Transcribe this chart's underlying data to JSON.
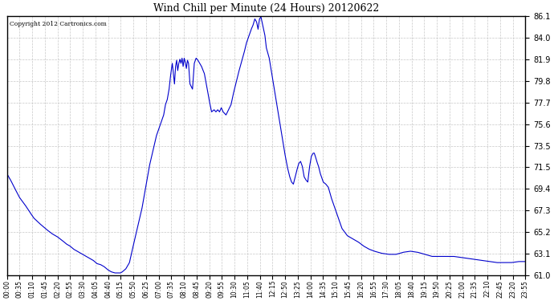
{
  "title": "Wind Chill per Minute (24 Hours) 20120622",
  "copyright": "Copyright 2012 Cartronics.com",
  "line_color": "#0000cc",
  "background_color": "#ffffff",
  "grid_color": "#c8c8c8",
  "ylim": [
    61.0,
    86.1
  ],
  "yticks": [
    61.0,
    63.1,
    65.2,
    67.3,
    69.4,
    71.5,
    73.5,
    75.6,
    77.7,
    79.8,
    81.9,
    84.0,
    86.1
  ],
  "xtick_labels": [
    "00:00",
    "00:35",
    "01:10",
    "01:45",
    "02:20",
    "02:55",
    "03:30",
    "04:05",
    "04:40",
    "05:15",
    "05:50",
    "06:25",
    "07:00",
    "07:35",
    "08:10",
    "08:45",
    "09:20",
    "09:55",
    "10:30",
    "11:05",
    "11:40",
    "12:15",
    "12:50",
    "13:25",
    "14:00",
    "14:35",
    "15:10",
    "15:45",
    "16:20",
    "16:55",
    "17:30",
    "18:05",
    "18:40",
    "19:15",
    "19:50",
    "20:25",
    "21:00",
    "21:35",
    "22:10",
    "22:45",
    "23:20",
    "23:55"
  ],
  "data_keypoints": [
    [
      0,
      70.8
    ],
    [
      10,
      70.2
    ],
    [
      20,
      69.5
    ],
    [
      35,
      68.5
    ],
    [
      50,
      67.8
    ],
    [
      65,
      67.0
    ],
    [
      75,
      66.5
    ],
    [
      90,
      66.0
    ],
    [
      110,
      65.4
    ],
    [
      125,
      65.0
    ],
    [
      140,
      64.7
    ],
    [
      155,
      64.3
    ],
    [
      165,
      64.0
    ],
    [
      175,
      63.8
    ],
    [
      185,
      63.5
    ],
    [
      200,
      63.2
    ],
    [
      210,
      63.0
    ],
    [
      220,
      62.8
    ],
    [
      230,
      62.6
    ],
    [
      240,
      62.4
    ],
    [
      250,
      62.1
    ],
    [
      260,
      62.0
    ],
    [
      270,
      61.8
    ],
    [
      280,
      61.5
    ],
    [
      290,
      61.3
    ],
    [
      300,
      61.2
    ],
    [
      310,
      61.2
    ],
    [
      315,
      61.2
    ],
    [
      320,
      61.3
    ],
    [
      330,
      61.6
    ],
    [
      340,
      62.2
    ],
    [
      345,
      63.0
    ],
    [
      355,
      64.5
    ],
    [
      365,
      66.0
    ],
    [
      375,
      67.5
    ],
    [
      385,
      69.5
    ],
    [
      395,
      71.5
    ],
    [
      405,
      73.0
    ],
    [
      415,
      74.5
    ],
    [
      425,
      75.5
    ],
    [
      430,
      76.0
    ],
    [
      435,
      76.5
    ],
    [
      440,
      77.5
    ],
    [
      445,
      78.0
    ],
    [
      450,
      79.0
    ],
    [
      453,
      80.0
    ],
    [
      456,
      80.8
    ],
    [
      459,
      81.5
    ],
    [
      462,
      80.5
    ],
    [
      465,
      79.5
    ],
    [
      468,
      81.2
    ],
    [
      471,
      81.8
    ],
    [
      474,
      80.8
    ],
    [
      477,
      81.5
    ],
    [
      480,
      81.9
    ],
    [
      483,
      81.5
    ],
    [
      486,
      82.0
    ],
    [
      489,
      81.2
    ],
    [
      492,
      82.0
    ],
    [
      495,
      81.6
    ],
    [
      498,
      81.0
    ],
    [
      501,
      81.8
    ],
    [
      504,
      81.5
    ],
    [
      508,
      79.5
    ],
    [
      515,
      79.0
    ],
    [
      520,
      81.5
    ],
    [
      525,
      82.0
    ],
    [
      530,
      81.8
    ],
    [
      535,
      81.5
    ],
    [
      540,
      81.2
    ],
    [
      548,
      80.5
    ],
    [
      555,
      79.2
    ],
    [
      562,
      77.8
    ],
    [
      568,
      76.8
    ],
    [
      575,
      77.0
    ],
    [
      580,
      76.8
    ],
    [
      585,
      77.0
    ],
    [
      590,
      76.8
    ],
    [
      595,
      77.2
    ],
    [
      600,
      76.8
    ],
    [
      608,
      76.5
    ],
    [
      615,
      77.0
    ],
    [
      622,
      77.5
    ],
    [
      628,
      78.5
    ],
    [
      635,
      79.5
    ],
    [
      642,
      80.5
    ],
    [
      650,
      81.5
    ],
    [
      658,
      82.5
    ],
    [
      665,
      83.5
    ],
    [
      672,
      84.2
    ],
    [
      678,
      84.8
    ],
    [
      683,
      85.2
    ],
    [
      688,
      85.8
    ],
    [
      693,
      85.5
    ],
    [
      697,
      84.8
    ],
    [
      701,
      85.8
    ],
    [
      705,
      86.0
    ],
    [
      708,
      85.5
    ],
    [
      712,
      84.8
    ],
    [
      716,
      84.2
    ],
    [
      720,
      83.0
    ],
    [
      728,
      82.0
    ],
    [
      735,
      80.5
    ],
    [
      742,
      79.0
    ],
    [
      749,
      77.5
    ],
    [
      756,
      76.0
    ],
    [
      763,
      74.5
    ],
    [
      770,
      73.0
    ],
    [
      778,
      71.5
    ],
    [
      785,
      70.5
    ],
    [
      790,
      70.0
    ],
    [
      795,
      69.8
    ],
    [
      800,
      70.5
    ],
    [
      805,
      71.2
    ],
    [
      810,
      71.8
    ],
    [
      815,
      72.0
    ],
    [
      820,
      71.5
    ],
    [
      825,
      70.5
    ],
    [
      830,
      70.2
    ],
    [
      835,
      70.0
    ],
    [
      840,
      71.5
    ],
    [
      845,
      72.5
    ],
    [
      850,
      72.8
    ],
    [
      853,
      72.8
    ],
    [
      856,
      72.5
    ],
    [
      860,
      72.0
    ],
    [
      865,
      71.5
    ],
    [
      870,
      70.8
    ],
    [
      878,
      70.0
    ],
    [
      885,
      69.8
    ],
    [
      892,
      69.5
    ],
    [
      900,
      68.5
    ],
    [
      910,
      67.5
    ],
    [
      920,
      66.5
    ],
    [
      930,
      65.5
    ],
    [
      945,
      64.8
    ],
    [
      960,
      64.5
    ],
    [
      975,
      64.2
    ],
    [
      990,
      63.8
    ],
    [
      1005,
      63.5
    ],
    [
      1020,
      63.3
    ],
    [
      1040,
      63.1
    ],
    [
      1060,
      63.0
    ],
    [
      1080,
      63.0
    ],
    [
      1100,
      63.2
    ],
    [
      1120,
      63.3
    ],
    [
      1140,
      63.2
    ],
    [
      1160,
      63.0
    ],
    [
      1180,
      62.8
    ],
    [
      1200,
      62.8
    ],
    [
      1220,
      62.8
    ],
    [
      1240,
      62.8
    ],
    [
      1260,
      62.7
    ],
    [
      1280,
      62.6
    ],
    [
      1300,
      62.5
    ],
    [
      1320,
      62.4
    ],
    [
      1340,
      62.3
    ],
    [
      1360,
      62.2
    ],
    [
      1380,
      62.2
    ],
    [
      1400,
      62.2
    ],
    [
      1420,
      62.3
    ],
    [
      1438,
      62.3
    ]
  ],
  "total_minutes": 1439
}
